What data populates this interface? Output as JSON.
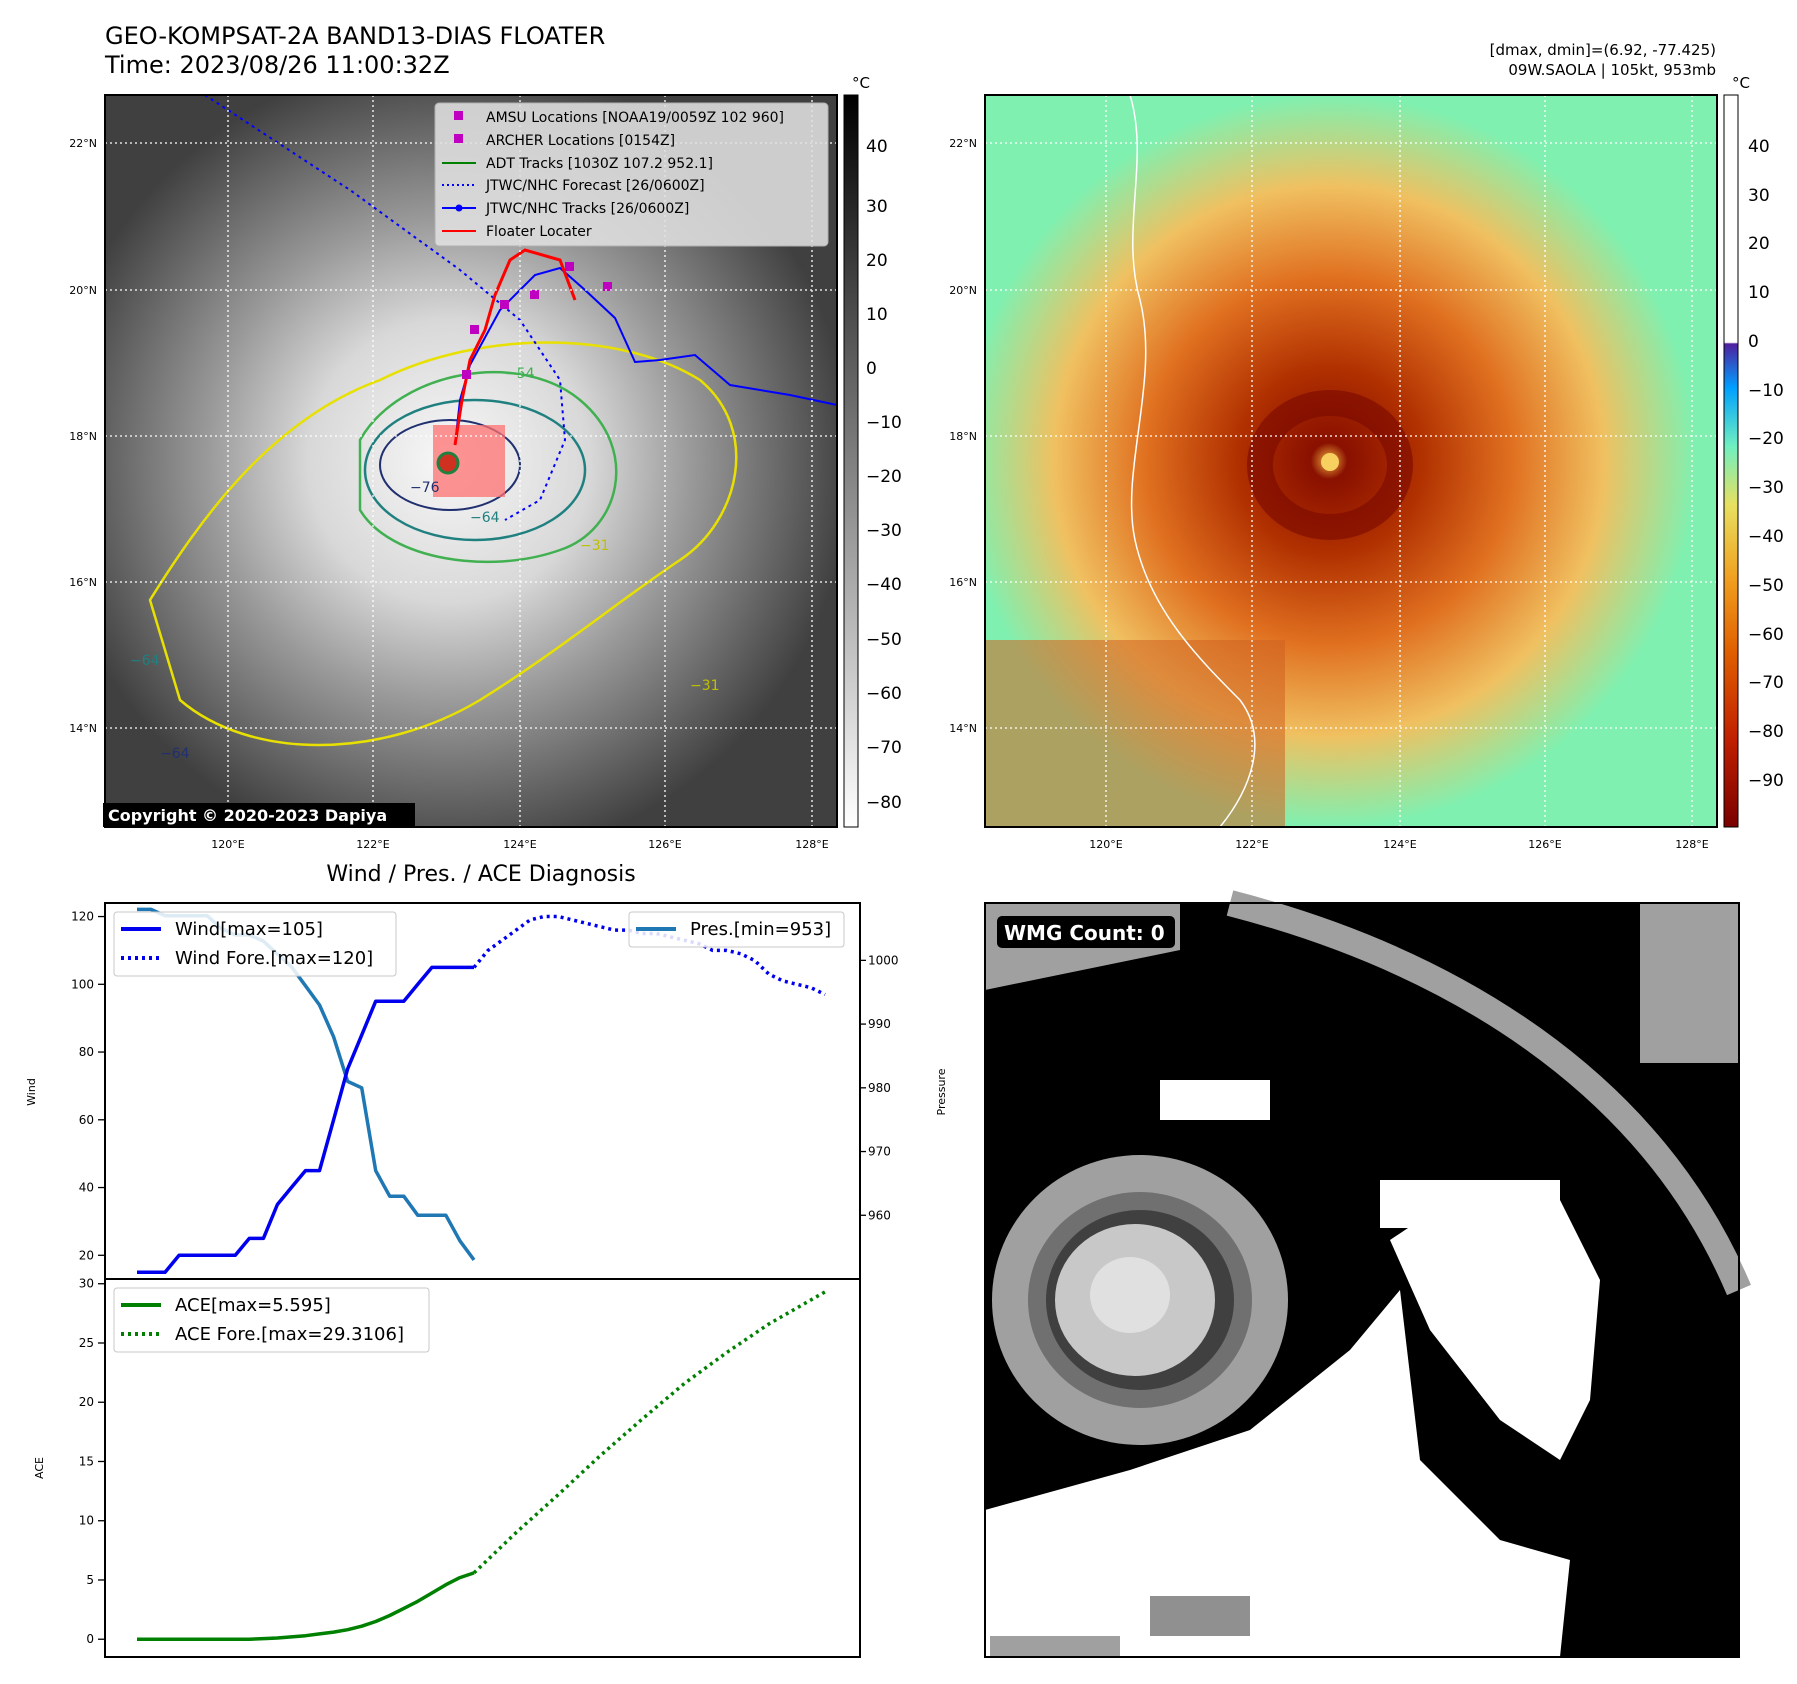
{
  "header": {
    "title": "GEO-KOMPSAT-2A BAND13-DIAS FLOATER",
    "time": "Time: 2023/08/26 11:00:32Z",
    "dmax_dmin": "[dmax, dmin]=(6.92, -77.425)",
    "storm_info": "09W.SAOLA | 105kt, 953mb"
  },
  "maps": {
    "lat_ticks": [
      "22°N",
      "20°N",
      "18°N",
      "16°N",
      "14°N"
    ],
    "lon_ticks": [
      "120°E",
      "122°E",
      "124°E",
      "126°E",
      "128°E"
    ],
    "copyright": "Copyright © 2020-2023 Dapiya",
    "unit": "°C",
    "gray_colorbar_ticks": [
      "40",
      "30",
      "20",
      "10",
      "0",
      "−10",
      "−20",
      "−30",
      "−40",
      "−50",
      "−60",
      "−70",
      "−80"
    ],
    "color_colorbar_ticks": [
      "40",
      "30",
      "20",
      "10",
      "0",
      "−10",
      "−20",
      "−30",
      "−40",
      "−50",
      "−60",
      "−70",
      "−80",
      "−90"
    ],
    "contour_labels": [
      "−76",
      "−64",
      "−54",
      "−31",
      "−64",
      "−31",
      "−64"
    ],
    "legend": [
      {
        "label": "AMSU Locations [NOAA19/0059Z 102 960]",
        "color": "#c000c0",
        "kind": "square"
      },
      {
        "label": "ARCHER Locations [0154Z]",
        "color": "#c000c0",
        "kind": "square"
      },
      {
        "label": "ADT Tracks [1030Z 107.2 952.1]",
        "color": "#008000",
        "kind": "line"
      },
      {
        "label": "JTWC/NHC Forecast [26/0600Z]",
        "color": "#0000ff",
        "kind": "dotted"
      },
      {
        "label": "JTWC/NHC Tracks [26/0600Z]",
        "color": "#0000ff",
        "kind": "line-marker"
      },
      {
        "label": "Floater Locater",
        "color": "#ff0000",
        "kind": "line"
      }
    ]
  },
  "diagnosis": {
    "title": "Wind / Pres. / ACE Diagnosis",
    "wind_ylabel": "Wind",
    "pressure_ylabel": "Pressure",
    "ace_ylabel": "ACE",
    "wind_ticks": [
      "120",
      "100",
      "80",
      "60",
      "40",
      "20"
    ],
    "pressure_ticks": [
      "1000",
      "990",
      "980",
      "970",
      "960"
    ],
    "ace_ticks": [
      "30",
      "25",
      "20",
      "15",
      "10",
      "5",
      "0"
    ],
    "legend_wind": "Wind[max=105]",
    "legend_wind_fore": "Wind Fore.[max=120]",
    "legend_pres": "Pres.[min=953]",
    "legend_ace": "ACE[max=5.595]",
    "legend_ace_fore": "ACE Fore.[max=29.3106]"
  },
  "wmg": {
    "label": "WMG Count: 0"
  },
  "colors": {
    "wind": "#0000ee",
    "pressure": "#1f77b4",
    "ace": "#008000"
  },
  "chart_data": [
    {
      "type": "line",
      "title": "Wind / Pres. / ACE Diagnosis",
      "ylabel": "Wind",
      "ylim": [
        13,
        124
      ],
      "y2label": "Pressure",
      "y2lim": [
        950,
        1009
      ],
      "series": [
        {
          "name": "Wind[max=105]",
          "axis": "left",
          "x": [
            0,
            1,
            2,
            3,
            4,
            5,
            6,
            7,
            8,
            9,
            10,
            11,
            12,
            13,
            14,
            15,
            16,
            17,
            18,
            19,
            20,
            21,
            22,
            23,
            24
          ],
          "values": [
            15,
            15,
            15,
            20,
            20,
            20,
            20,
            20,
            25,
            25,
            35,
            40,
            45,
            45,
            60,
            75,
            85,
            95,
            95,
            95,
            100,
            105,
            105,
            105,
            105
          ]
        },
        {
          "name": "Wind Fore.[max=120]",
          "axis": "left",
          "x": [
            24,
            25,
            26,
            27,
            28,
            29,
            30,
            31,
            32,
            33,
            34,
            35,
            36,
            37,
            38,
            39,
            40,
            41,
            42,
            43,
            44,
            45,
            46,
            47,
            48,
            49
          ],
          "values": [
            105,
            110,
            113,
            116,
            119,
            120,
            120,
            119,
            118,
            117,
            116,
            116,
            115,
            115,
            114,
            113,
            112,
            110,
            110,
            109,
            107,
            103,
            101,
            100,
            99,
            97
          ]
        },
        {
          "name": "Pres.[min=953]",
          "axis": "right",
          "x": [
            0,
            1,
            2,
            3,
            4,
            5,
            6,
            7,
            8,
            9,
            10,
            11,
            12,
            13,
            14,
            15,
            16,
            17,
            18,
            19,
            20,
            21,
            22,
            23,
            24
          ],
          "values": [
            1008,
            1008,
            1007,
            1007,
            1007,
            1007,
            1005,
            1004,
            1004,
            1003,
            1001,
            999,
            996,
            993,
            988,
            981,
            980,
            967,
            963,
            963,
            960,
            960,
            960,
            956,
            953
          ]
        }
      ]
    },
    {
      "type": "line",
      "ylabel": "ACE",
      "ylim": [
        -1.5,
        30.4
      ],
      "series": [
        {
          "name": "ACE[max=5.595]",
          "x": [
            0,
            1,
            2,
            3,
            4,
            5,
            6,
            7,
            8,
            9,
            10,
            11,
            12,
            13,
            14,
            15,
            16,
            17,
            18,
            19,
            20,
            21,
            22,
            23,
            24
          ],
          "values": [
            0.0,
            0.0,
            0.0,
            0.0,
            0.0,
            0.0,
            0.0,
            0.0,
            0.0,
            0.05,
            0.1,
            0.2,
            0.3,
            0.45,
            0.6,
            0.8,
            1.1,
            1.5,
            2.0,
            2.6,
            3.2,
            3.9,
            4.6,
            5.2,
            5.595
          ]
        },
        {
          "name": "ACE Fore.[max=29.3106]",
          "x": [
            24,
            27,
            30,
            33,
            36,
            39,
            42,
            45,
            49
          ],
          "values": [
            5.595,
            9.0,
            12.2,
            15.5,
            18.6,
            21.6,
            24.2,
            26.6,
            29.3106
          ]
        }
      ]
    }
  ]
}
